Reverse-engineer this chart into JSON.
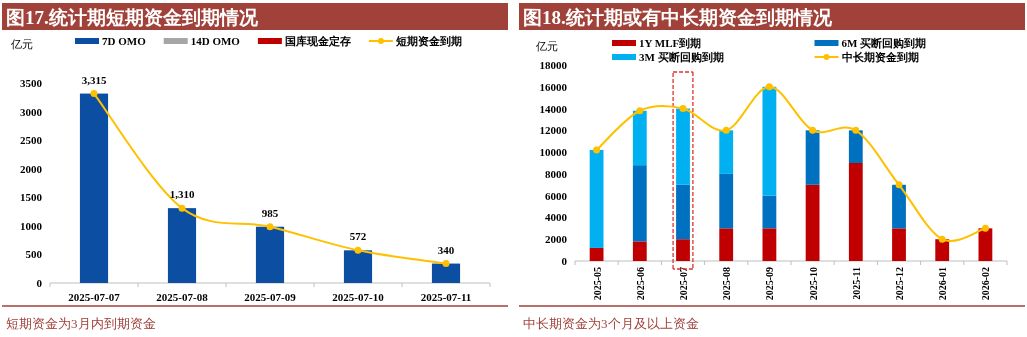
{
  "chart_data": [
    {
      "type": "bar",
      "stacked": true,
      "title": "图17.统计期短期资金到期情况",
      "ylabel": "亿元",
      "legend": "top",
      "marker": "circle",
      "categories": [
        "2025-07-07",
        "2025-07-08",
        "2025-07-09",
        "2025-07-10",
        "2025-07-11"
      ],
      "ylim": [
        0,
        3500
      ],
      "yticks": [
        0,
        500,
        1000,
        1500,
        2000,
        2500,
        3000,
        3500
      ],
      "series": [
        {
          "name": "7D OMO",
          "color": "#0b4ea2",
          "values": [
            3315,
            1310,
            985,
            572,
            340
          ]
        },
        {
          "name": "14D OMO",
          "color": "#a6a6a6",
          "values": [
            0,
            0,
            0,
            0,
            0
          ]
        },
        {
          "name": "国库现金定存",
          "color": "#c00000",
          "values": [
            0,
            0,
            0,
            0,
            0
          ]
        },
        {
          "name": "短期资金到期",
          "type": "line",
          "color": "#ffc000",
          "values": [
            3315,
            1310,
            985,
            572,
            340
          ],
          "value_labels": [
            "3,315",
            "1,310",
            "985",
            "572",
            "340"
          ]
        }
      ],
      "annotations": [
        "短期资金为3月内到期资金"
      ]
    },
    {
      "type": "bar",
      "stacked": true,
      "title": "图18.统计期或有中长期资金到期情况",
      "ylabel": "亿元",
      "legend": "top",
      "marker": "circle",
      "categories": [
        "2025-05",
        "2025-06",
        "2025-07",
        "2025-08",
        "2025-09",
        "2025-10",
        "2025-11",
        "2025-12",
        "2026-01",
        "2026-02"
      ],
      "ylim": [
        0,
        18000
      ],
      "yticks": [
        0,
        2000,
        4000,
        6000,
        8000,
        10000,
        12000,
        14000,
        16000,
        18000
      ],
      "series": [
        {
          "name": "1Y MLF到期",
          "color": "#c00000",
          "values": [
            1200,
            1800,
            2000,
            3000,
            3000,
            7000,
            9000,
            3000,
            2000,
            3000
          ]
        },
        {
          "name": "6M 买断回购到期",
          "color": "#0070c0",
          "values": [
            0,
            7000,
            5000,
            5000,
            3000,
            5000,
            3000,
            4000,
            0,
            0
          ]
        },
        {
          "name": "3M 买断回购到期",
          "color": "#00b0f0",
          "values": [
            9000,
            5000,
            7000,
            4000,
            10000,
            0,
            0,
            0,
            0,
            0
          ]
        },
        {
          "name": "中长期资金到期",
          "type": "line",
          "color": "#ffc000",
          "values": [
            10200,
            13800,
            14000,
            12000,
            16000,
            12000,
            12000,
            7000,
            2000,
            3000
          ]
        }
      ],
      "annotations": [
        "中长期资金为3个月及以上资金"
      ]
    }
  ]
}
